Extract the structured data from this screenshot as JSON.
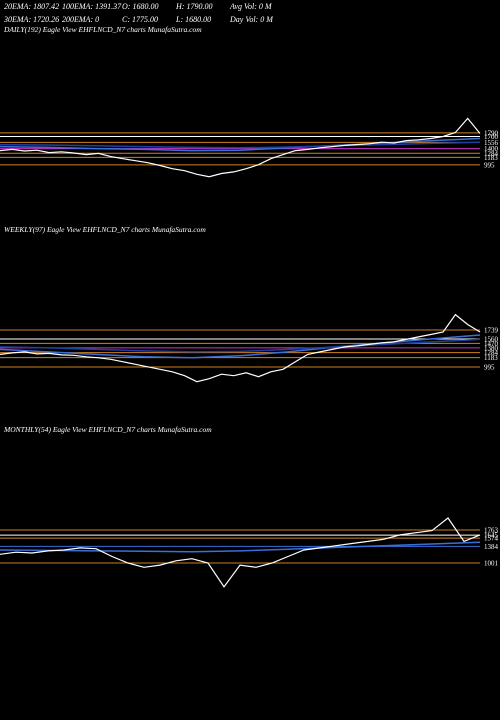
{
  "header": [
    "20EMA: 1807.42",
    "100EMA: 1391.37",
    "O: 1680.00",
    "H: 1790.00",
    "Avg Vol: 0  M",
    "30EMA: 1720.26",
    "200EMA: 0",
    "C: 1775.00",
    "L: 1680.00",
    "Day Vol: 0  M"
  ],
  "chart_data": [
    {
      "type": "line",
      "title": "DAILY(192) Eagle  View  EHFLNCD_N7 charts MunafaSutra.com",
      "color": "#ffffff",
      "values": [
        1350,
        1380,
        1340,
        1360,
        1300,
        1320,
        1290,
        1250,
        1280,
        1200,
        1150,
        1100,
        1050,
        980,
        900,
        850,
        760,
        700,
        780,
        820,
        900,
        1000,
        1150,
        1250,
        1350,
        1380,
        1420,
        1450,
        1480,
        1500,
        1520,
        1560,
        1540,
        1600,
        1620,
        1650,
        1700,
        1800,
        2150,
        1775
      ],
      "averages": [
        {
          "color": "#3a6fd8",
          "values": [
            1450,
            1430,
            1400,
            1380,
            1350,
            1360,
            1420,
            1480,
            1540,
            1600,
            1650
          ]
        },
        {
          "color": "#1e3fa0",
          "values": [
            1500,
            1490,
            1470,
            1450,
            1430,
            1420,
            1440,
            1470,
            1500,
            1530,
            1560
          ]
        }
      ],
      "levels": [
        1790,
        1700,
        1556,
        1400,
        1284,
        1183,
        995
      ],
      "level_colors": [
        "#d08020",
        "#ffffff",
        "#d08020",
        "#cc33cc",
        "#d08020",
        "#d08020",
        "#d08020"
      ],
      "ylim": [
        -500,
        4225
      ]
    },
    {
      "type": "line",
      "title": "WEEKLY(97) Eagle  View  EHFLNCD_N7 charts MunafaSutra.com",
      "color": "#ffffff",
      "values": [
        1250,
        1280,
        1300,
        1260,
        1270,
        1240,
        1230,
        1200,
        1180,
        1150,
        1100,
        1050,
        1000,
        950,
        900,
        820,
        700,
        760,
        850,
        820,
        880,
        800,
        900,
        950,
        1100,
        1250,
        1300,
        1350,
        1400,
        1420,
        1450,
        1480,
        1500,
        1550,
        1600,
        1650,
        1700,
        2050,
        1850,
        1700
      ],
      "averages": [
        {
          "color": "#3a6fd8",
          "values": [
            1350,
            1300,
            1250,
            1200,
            1180,
            1220,
            1300,
            1400,
            1480,
            1560,
            1640
          ]
        },
        {
          "color": "#1e3fa0",
          "values": [
            1400,
            1380,
            1350,
            1320,
            1300,
            1310,
            1350,
            1400,
            1450,
            1500,
            1550
          ]
        }
      ],
      "levels": [
        1739,
        1560,
        1470,
        1380,
        1284,
        1183,
        995
      ],
      "level_colors": [
        "#d08020",
        "#ffffff",
        "#d08020",
        "#cc33cc",
        "#d08020",
        "#d08020",
        "#d08020"
      ],
      "ylim": [
        -70,
        3650
      ]
    },
    {
      "type": "line",
      "title": "MONTHLY(54) Eagle  View  EHFLNCD_N7 charts MunafaSutra.com",
      "color": "#ffffff",
      "values": [
        1200,
        1250,
        1230,
        1280,
        1300,
        1350,
        1330,
        1150,
        1000,
        900,
        950,
        1050,
        1100,
        1000,
        450,
        950,
        900,
        1000,
        1150,
        1300,
        1350,
        1400,
        1450,
        1500,
        1550,
        1650,
        1700,
        1750,
        2040,
        1500,
        1650
      ],
      "averages": [
        {
          "color": "#3a6fd8",
          "values": [
            1300,
            1290,
            1280,
            1270,
            1260,
            1280,
            1320,
            1360,
            1400,
            1440,
            1480
          ]
        }
      ],
      "levels": [
        1763,
        1645,
        1574,
        1384,
        1001
      ],
      "level_colors": [
        "#d08020",
        "#ffffff",
        "#d08020",
        "#3a6fd8",
        "#d08020"
      ],
      "ylim": [
        -2400,
        3960
      ]
    }
  ]
}
